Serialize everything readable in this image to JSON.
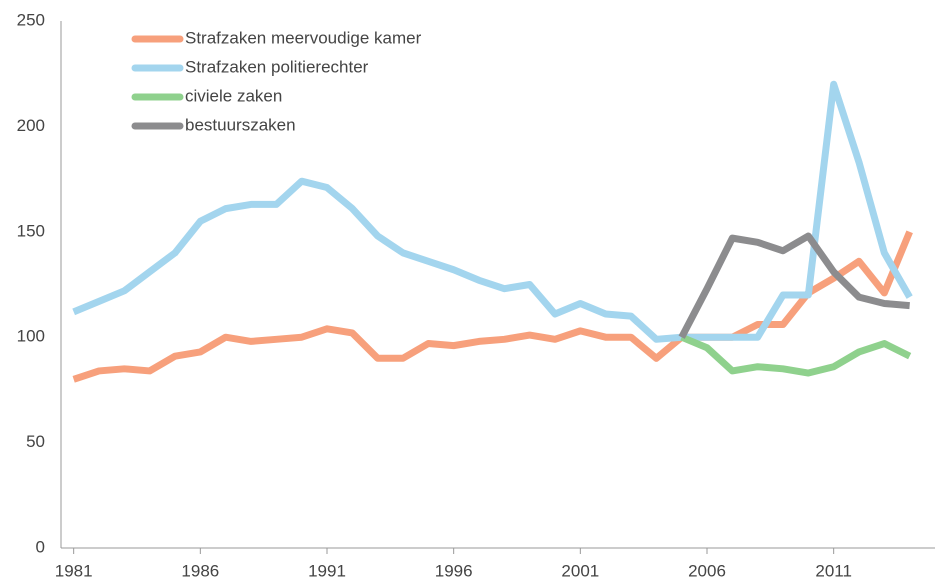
{
  "chart_data": {
    "type": "line",
    "x": [
      1981,
      1982,
      1983,
      1984,
      1985,
      1986,
      1987,
      1988,
      1989,
      1990,
      1991,
      1992,
      1993,
      1994,
      1995,
      1996,
      1997,
      1998,
      1999,
      2000,
      2001,
      2002,
      2003,
      2004,
      2005,
      2006,
      2007,
      2008,
      2009,
      2010,
      2011,
      2012,
      2013,
      2014
    ],
    "series": [
      {
        "name": "Strafzaken meervoudige kamer",
        "color": "#f7a07c",
        "values": [
          80,
          84,
          85,
          84,
          91,
          93,
          100,
          98,
          99,
          100,
          104,
          102,
          90,
          90,
          97,
          96,
          98,
          99,
          101,
          99,
          103,
          100,
          100,
          90,
          100,
          100,
          100,
          106,
          106,
          121,
          128,
          136,
          121,
          150
        ]
      },
      {
        "name": "Strafzaken politierechter",
        "color": "#a3d5ee",
        "values": [
          112,
          117,
          122,
          131,
          140,
          155,
          161,
          163,
          163,
          174,
          171,
          161,
          148,
          140,
          136,
          132,
          127,
          123,
          125,
          111,
          116,
          111,
          110,
          99,
          100,
          100,
          100,
          100,
          120,
          120,
          220,
          183,
          140,
          119
        ]
      },
      {
        "name": "civiele zaken",
        "color": "#8fd18d",
        "values": [
          null,
          null,
          null,
          null,
          null,
          null,
          null,
          null,
          null,
          null,
          null,
          null,
          null,
          null,
          null,
          null,
          null,
          null,
          null,
          null,
          null,
          null,
          null,
          null,
          100,
          95,
          84,
          86,
          85,
          83,
          86,
          93,
          97,
          91
        ]
      },
      {
        "name": "bestuurszaken",
        "color": "#8c8c8e",
        "values": [
          null,
          null,
          null,
          null,
          null,
          null,
          null,
          null,
          null,
          null,
          null,
          null,
          null,
          null,
          null,
          null,
          null,
          null,
          null,
          null,
          null,
          null,
          null,
          null,
          100,
          123,
          147,
          145,
          141,
          148,
          131,
          119,
          116,
          115
        ]
      }
    ],
    "xlim": [
      1980.5,
      2015
    ],
    "xticks": [
      1981,
      1986,
      1991,
      1996,
      2001,
      2006,
      2011
    ],
    "ylim": [
      0,
      250
    ],
    "yticks": [
      0,
      50,
      100,
      150,
      200,
      250
    ],
    "grid": false,
    "legend": "upper left"
  }
}
